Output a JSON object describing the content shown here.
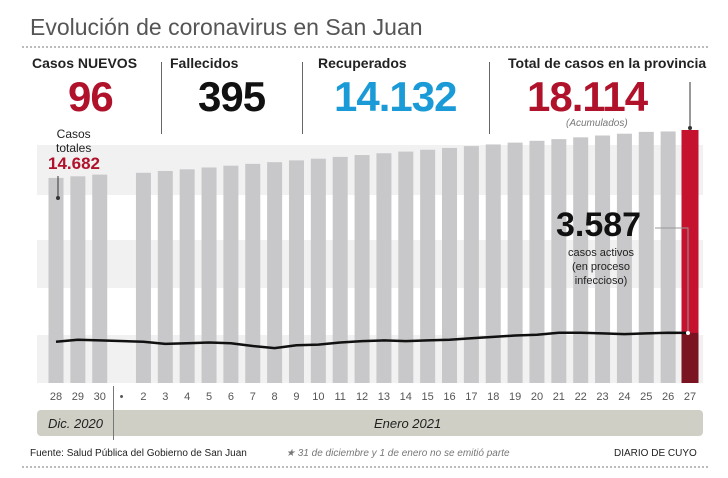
{
  "title": "Evolución de coronavirus en San Juan",
  "stats": {
    "nuevos": {
      "label": "Casos NUEVOS",
      "value": "96"
    },
    "fallecidos": {
      "label": "Fallecidos",
      "value": "395"
    },
    "recuperados": {
      "label": "Recuperados",
      "value": "14.132"
    },
    "total": {
      "label": "Total de casos en la provincia",
      "value": "18.114",
      "note": "(Acumulados)"
    }
  },
  "annotations": {
    "casos_totales_label_1": "Casos",
    "casos_totales_label_2": "totales",
    "casos_totales_value": "14.682",
    "activos_value": "3.587",
    "activos_line1": "casos activos",
    "activos_line2": "(en proceso",
    "activos_line3": "infeccioso)"
  },
  "months": {
    "dic": "Dic. 2020",
    "enero": "Enero 2021"
  },
  "footer": {
    "source": "Fuente: Salud Pública del Gobierno de San Juan",
    "note": "★ 31 de diciembre y 1 de enero no se emitió parte",
    "brand": "DIARIO DE CUYO"
  },
  "colors": {
    "bar": "#c8c8ca",
    "highlight": "#c4122f",
    "highlight_dark": "#7a1420",
    "line": "#111111",
    "band": "#f1f1f2",
    "accent_blue": "#1a9ad6",
    "accent_red": "#b0122b"
  },
  "chart_data": {
    "type": "bar",
    "title": "Evolución de coronavirus en San Juan",
    "categories": [
      "28",
      "29",
      "30",
      "*",
      "2",
      "3",
      "4",
      "5",
      "6",
      "7",
      "8",
      "9",
      "10",
      "11",
      "12",
      "13",
      "14",
      "15",
      "16",
      "17",
      "18",
      "19",
      "20",
      "21",
      "22",
      "23",
      "24",
      "25",
      "26",
      "27"
    ],
    "category_labels": [
      "28",
      "29",
      "30",
      "•",
      "2",
      "3",
      "4",
      "5",
      "6",
      "7",
      "8",
      "9",
      "10",
      "11",
      "12",
      "13",
      "14",
      "15",
      "16",
      "17",
      "18",
      "19",
      "20",
      "21",
      "22",
      "23",
      "24",
      "25",
      "26",
      "27"
    ],
    "series": [
      {
        "name": "Casos totales",
        "type": "bar",
        "values": [
          14682,
          14800,
          14920,
          null,
          15050,
          15180,
          15300,
          15430,
          15560,
          15690,
          15810,
          15940,
          16060,
          16190,
          16320,
          16450,
          16570,
          16700,
          16830,
          16960,
          17080,
          17210,
          17340,
          17460,
          17590,
          17720,
          17850,
          17980,
          18010,
          18114
        ]
      },
      {
        "name": "Casos activos",
        "type": "line",
        "values": [
          2950,
          3100,
          3050,
          null,
          2950,
          2800,
          2850,
          2900,
          2850,
          2650,
          2500,
          2700,
          2750,
          2900,
          3000,
          3050,
          3000,
          3050,
          3100,
          3200,
          3300,
          3400,
          3450,
          3600,
          3600,
          3550,
          3500,
          3550,
          3600,
          3587
        ]
      }
    ],
    "ylim": [
      0,
      18114
    ],
    "xlabel": "",
    "ylabel": "",
    "grid": false
  }
}
